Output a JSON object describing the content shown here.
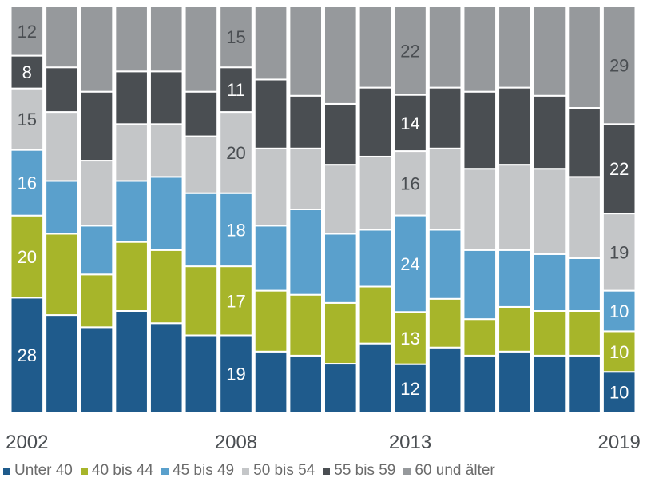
{
  "chart_data": {
    "type": "bar",
    "stacked": true,
    "normalized": true,
    "x_tick_labels": [
      "2002",
      "2008",
      "2013",
      "2019"
    ],
    "categories": [
      "2002",
      "2003",
      "2004",
      "2005",
      "2006",
      "2007",
      "2008",
      "2009",
      "2010",
      "2011",
      "2012",
      "2013",
      "2014",
      "2015",
      "2016",
      "2017",
      "2018",
      "2019"
    ],
    "series": [
      {
        "name": "Unter 40",
        "color": "#1f5b8c",
        "values": [
          28,
          24,
          21,
          25,
          22,
          19,
          19,
          15,
          14,
          12,
          17,
          12,
          16,
          14,
          15,
          14,
          14,
          10
        ],
        "labels": [
          "28",
          "",
          "",
          "",
          "",
          "",
          "19",
          "",
          "",
          "",
          "",
          "12",
          "",
          "",
          "",
          "",
          "",
          "10"
        ]
      },
      {
        "name": "40 bis 44",
        "color": "#a7b52a",
        "values": [
          20,
          20,
          13,
          17,
          18,
          17,
          17,
          15,
          15,
          15,
          14,
          13,
          12,
          9,
          11,
          11,
          11,
          10
        ],
        "labels": [
          "20",
          "",
          "",
          "",
          "",
          "",
          "17",
          "",
          "",
          "",
          "",
          "13",
          "",
          "",
          "",
          "",
          "",
          "10"
        ]
      },
      {
        "name": "45 bis 49",
        "color": "#5aa0cc",
        "values": [
          16,
          13,
          12,
          15,
          18,
          18,
          18,
          16,
          21,
          17,
          14,
          24,
          17,
          17,
          14,
          14,
          13,
          10
        ],
        "labels": [
          "16",
          "",
          "",
          "",
          "",
          "",
          "18",
          "",
          "",
          "",
          "",
          "24",
          "",
          "",
          "",
          "",
          "",
          "10"
        ]
      },
      {
        "name": "50 bis 54",
        "color": "#c4c6c8",
        "values": [
          15,
          17,
          16,
          14,
          13,
          14,
          20,
          19,
          15,
          17,
          18,
          16,
          20,
          20,
          21,
          21,
          20,
          19
        ],
        "labels": [
          "15",
          "",
          "",
          "",
          "",
          "",
          "20",
          "",
          "",
          "",
          "",
          "16",
          "",
          "",
          "",
          "",
          "",
          "19"
        ]
      },
      {
        "name": "55 bis 59",
        "color": "#4a4e52",
        "values": [
          8,
          11,
          17,
          13,
          13,
          11,
          11,
          17,
          13,
          15,
          17,
          14,
          15,
          19,
          19,
          18,
          17,
          22
        ],
        "labels": [
          "8",
          "",
          "",
          "",
          "",
          "",
          "11",
          "",
          "",
          "",
          "",
          "14",
          "",
          "",
          "",
          "",
          "",
          "22"
        ]
      },
      {
        "name": "60 und älter",
        "color": "#96999c",
        "values": [
          12,
          15,
          21,
          16,
          16,
          21,
          15,
          18,
          22,
          24,
          20,
          22,
          20,
          21,
          20,
          22,
          25,
          29
        ],
        "labels": [
          "12",
          "",
          "",
          "",
          "",
          "",
          "15",
          "",
          "",
          "",
          "",
          "22",
          "",
          "",
          "",
          "",
          "",
          "29"
        ]
      }
    ]
  },
  "legend_items": [
    {
      "name": "Unter 40",
      "color": "#1f5b8c"
    },
    {
      "name": "40 bis 44",
      "color": "#a7b52a"
    },
    {
      "name": "45 bis 49",
      "color": "#5aa0cc"
    },
    {
      "name": "50 bis 54",
      "color": "#c4c6c8"
    },
    {
      "name": "55 bis 59",
      "color": "#4a4e52"
    },
    {
      "name": "60 und älter",
      "color": "#96999c"
    }
  ]
}
